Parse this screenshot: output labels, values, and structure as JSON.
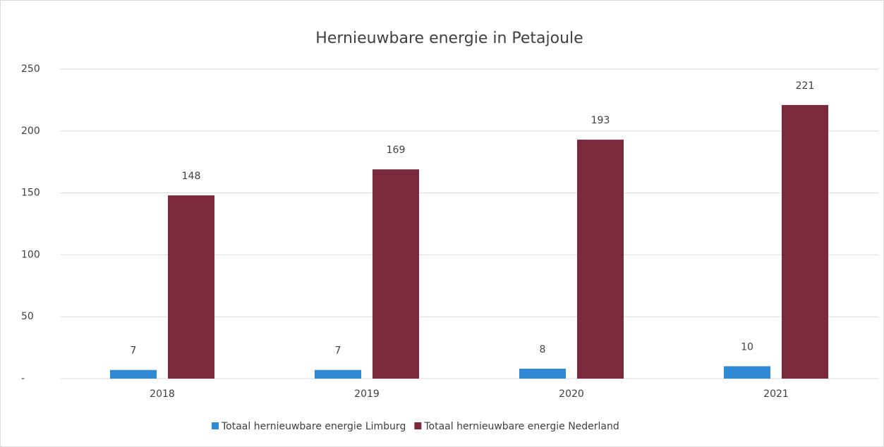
{
  "chart_data": {
    "type": "bar",
    "title": "Hernieuwbare energie in Petajoule",
    "categories": [
      "2018",
      "2019",
      "2020",
      "2021"
    ],
    "series": [
      {
        "name": "Totaal hernieuwbare energie Limburg",
        "color": "#2f8ad3",
        "values": [
          7,
          7,
          8,
          10
        ]
      },
      {
        "name": "Totaal hernieuwbare energie Nederland",
        "color": "#7b2a3e",
        "values": [
          148,
          169,
          193,
          221
        ]
      }
    ],
    "ylim": [
      0,
      250
    ],
    "yticks": [
      {
        "value": 0,
        "label": "-"
      },
      50,
      100,
      150,
      200,
      250
    ],
    "grid": true
  }
}
